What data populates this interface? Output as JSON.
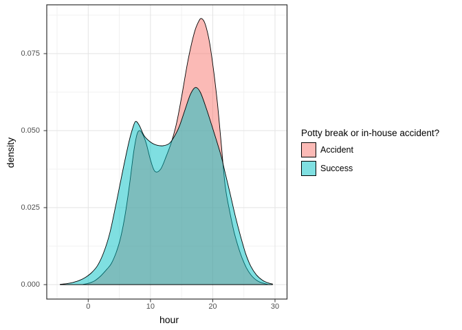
{
  "figure": {
    "background": "#ffffff",
    "panel_border_color": "#2f2f2f",
    "grid_major_color": "#e3e3e3",
    "grid_minor_color": "#f0f0f0",
    "tick_color": "#333333",
    "axis_text_color": "#4d4d4d",
    "title_text_color": "#000000"
  },
  "chart_data": {
    "type": "area",
    "subtype": "overlapping-density",
    "title": "",
    "xlabel": "hour",
    "ylabel": "density",
    "xlim": [
      -6.65,
      31.9
    ],
    "ylim": [
      0,
      0.0908
    ],
    "grid": true,
    "x_ticks": [
      0,
      10,
      20,
      30
    ],
    "x_tick_labels": [
      "0",
      "10",
      "20",
      "30"
    ],
    "y_ticks": [
      0,
      0.025,
      0.05,
      0.075
    ],
    "y_tick_labels": [
      "0.000",
      "0.025",
      "0.050",
      "0.075"
    ],
    "x_minor_ticks": [
      -5,
      5,
      15,
      25
    ],
    "y_minor_ticks": [
      0.0125,
      0.0375,
      0.0625,
      0.0875
    ],
    "legend": {
      "title": "Potty break or in-house accident?",
      "position": "right"
    },
    "series": [
      {
        "name": "Accident",
        "color": "#F8766D",
        "outline": "#000000",
        "fill_opacity": 0.5,
        "points": [
          [
            -0.8,
            0.0001
          ],
          [
            0,
            0.0004
          ],
          [
            1,
            0.0012
          ],
          [
            2,
            0.0028
          ],
          [
            3,
            0.005
          ],
          [
            3.7,
            0.0068
          ],
          [
            4.5,
            0.0105
          ],
          [
            5.2,
            0.0152
          ],
          [
            6,
            0.0235
          ],
          [
            6.7,
            0.0335
          ],
          [
            7.3,
            0.043
          ],
          [
            7.8,
            0.0485
          ],
          [
            8.2,
            0.05
          ],
          [
            8.7,
            0.049
          ],
          [
            9.3,
            0.046
          ],
          [
            10,
            0.0405
          ],
          [
            10.7,
            0.0368
          ],
          [
            11.6,
            0.0374
          ],
          [
            12.5,
            0.0415
          ],
          [
            13.4,
            0.0465
          ],
          [
            14.2,
            0.0525
          ],
          [
            15,
            0.061
          ],
          [
            16,
            0.0725
          ],
          [
            17,
            0.0815
          ],
          [
            17.7,
            0.0853
          ],
          [
            18.2,
            0.0864
          ],
          [
            18.8,
            0.0845
          ],
          [
            19.5,
            0.0785
          ],
          [
            20.2,
            0.0685
          ],
          [
            20.8,
            0.058
          ],
          [
            21.4,
            0.045
          ],
          [
            22,
            0.032
          ],
          [
            22.7,
            0.024
          ],
          [
            23.5,
            0.0165
          ],
          [
            24.5,
            0.0098
          ],
          [
            25.4,
            0.0055
          ],
          [
            26.2,
            0.003
          ],
          [
            27.2,
            0.0012
          ],
          [
            28.2,
            0.0004
          ],
          [
            28.8,
            0.0001
          ]
        ]
      },
      {
        "name": "Success",
        "color": "#00BFC4",
        "outline": "#000000",
        "fill_opacity": 0.5,
        "points": [
          [
            -4.5,
            0.0001
          ],
          [
            -3.5,
            0.0003
          ],
          [
            -2.5,
            0.0007
          ],
          [
            -1.5,
            0.0013
          ],
          [
            -0.5,
            0.0023
          ],
          [
            0.5,
            0.0038
          ],
          [
            1.5,
            0.0062
          ],
          [
            2.5,
            0.0105
          ],
          [
            3.5,
            0.017
          ],
          [
            4.5,
            0.0265
          ],
          [
            5.5,
            0.0365
          ],
          [
            6.5,
            0.046
          ],
          [
            7.1,
            0.0505
          ],
          [
            7.6,
            0.053
          ],
          [
            8.2,
            0.0517
          ],
          [
            9,
            0.0483
          ],
          [
            10,
            0.0463
          ],
          [
            11,
            0.0453
          ],
          [
            12,
            0.0451
          ],
          [
            13,
            0.0458
          ],
          [
            13.8,
            0.048
          ],
          [
            14.6,
            0.0512
          ],
          [
            15.5,
            0.0565
          ],
          [
            16.4,
            0.0617
          ],
          [
            17.2,
            0.064
          ],
          [
            18,
            0.0625
          ],
          [
            19,
            0.057
          ],
          [
            19.8,
            0.052
          ],
          [
            20.6,
            0.0468
          ],
          [
            21.4,
            0.0414
          ],
          [
            22,
            0.0362
          ],
          [
            22.8,
            0.0295
          ],
          [
            23.6,
            0.0225
          ],
          [
            24.5,
            0.0155
          ],
          [
            25.3,
            0.01
          ],
          [
            26.1,
            0.006
          ],
          [
            27,
            0.0032
          ],
          [
            28,
            0.0014
          ],
          [
            29,
            0.0005
          ],
          [
            29.6,
            0.0002
          ]
        ]
      }
    ]
  }
}
